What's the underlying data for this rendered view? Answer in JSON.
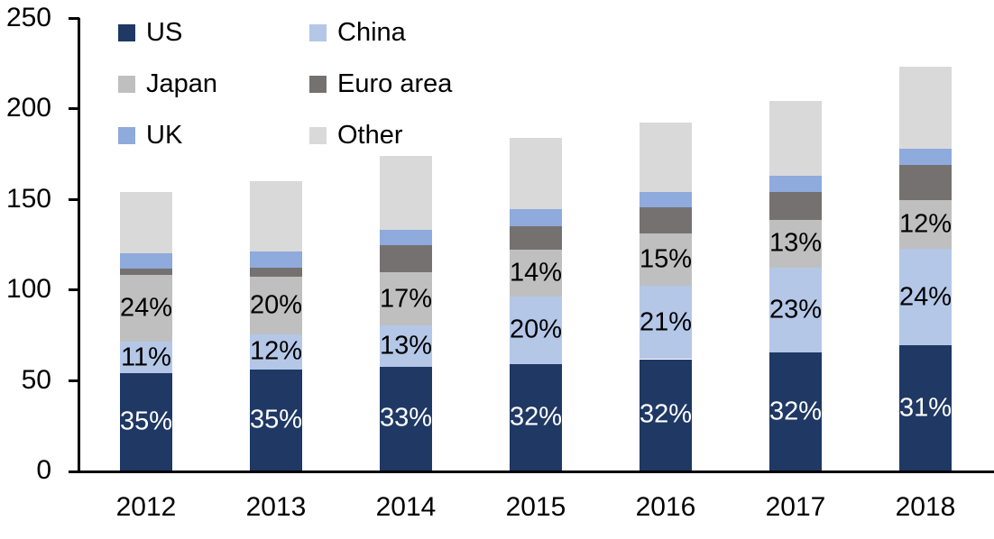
{
  "chart_data": {
    "type": "bar",
    "stacked": true,
    "title": "",
    "categories": [
      "2012",
      "2013",
      "2014",
      "2015",
      "2016",
      "2017",
      "2018"
    ],
    "series": [
      {
        "name": "US",
        "color": "#1F3864",
        "values": [
          54,
          56,
          57.5,
          59,
          61.5,
          65,
          69
        ],
        "labels": [
          "35%",
          "35%",
          "33%",
          "32%",
          "32%",
          "32%",
          "31%"
        ],
        "label_color": "#FFFFFF"
      },
      {
        "name": "China",
        "color": "#B4C7E7",
        "values": [
          17,
          19,
          22.5,
          37,
          40.5,
          47,
          53.5
        ],
        "labels": [
          "11%",
          "12%",
          "13%",
          "20%",
          "21%",
          "23%",
          "24%"
        ],
        "label_color": "#000000"
      },
      {
        "name": "Japan",
        "color": "#BFBFBF",
        "values": [
          37,
          32,
          29.5,
          26,
          29,
          26.5,
          27
        ],
        "labels": [
          "24%",
          "20%",
          "17%",
          "14%",
          "15%",
          "13%",
          "12%"
        ],
        "label_color": "#000000"
      },
      {
        "name": "Euro area",
        "color": "#767171",
        "values": [
          3.5,
          5,
          15,
          13,
          14.5,
          15.5,
          19.5
        ]
      },
      {
        "name": "UK",
        "color": "#8FAADC",
        "values": [
          8.5,
          9,
          8.5,
          9.5,
          8.5,
          9,
          9
        ]
      },
      {
        "name": "Other",
        "color": "#D9D9D9",
        "values": [
          34,
          39,
          41,
          39.5,
          38,
          41,
          45
        ]
      }
    ],
    "totals": [
      154,
      160,
      174,
      184,
      192,
      204,
      223
    ],
    "legend": {
      "position": "top-left",
      "columns": 2,
      "order": [
        "US",
        "China",
        "Japan",
        "Euro area",
        "UK",
        "Other"
      ]
    },
    "y_axis": {
      "min": 0,
      "max": 250,
      "tick_interval": 50,
      "tick_labels": [
        "0",
        "50",
        "100",
        "150",
        "200",
        "250"
      ]
    },
    "x_axis": {
      "tick_labels": [
        "2012",
        "2013",
        "2014",
        "2015",
        "2016",
        "2017",
        "2018"
      ]
    },
    "grid": false,
    "axis_color": "#000000",
    "background": "#FFFFFF"
  }
}
